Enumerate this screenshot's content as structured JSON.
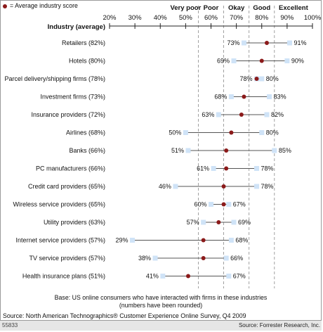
{
  "legend": {
    "label": "= Average industry score"
  },
  "chart_data": {
    "type": "dot-range",
    "header_label": "Industry (average)",
    "x_ticks": [
      "20%",
      "30%",
      "40%",
      "50%",
      "60%",
      "70%",
      "80%",
      "90%",
      "100%"
    ],
    "xlim": [
      20,
      100
    ],
    "ratings": [
      {
        "label": "Very poor",
        "from": 45,
        "to": 55
      },
      {
        "label": "Poor",
        "from": 55,
        "to": 65
      },
      {
        "label": "Okay",
        "from": 65,
        "to": 75
      },
      {
        "label": "Good",
        "from": 75,
        "to": 85
      },
      {
        "label": "Excellent",
        "from": 85,
        "to": 100
      }
    ],
    "rows": [
      {
        "label": "Retailers (82%)",
        "avg": 82,
        "min": 73,
        "max": 91,
        "min_label": "73%",
        "max_label": "91%"
      },
      {
        "label": "Hotels (80%)",
        "avg": 80,
        "min": 69,
        "max": 90,
        "min_label": "69%",
        "max_label": "90%"
      },
      {
        "label": "Parcel delivery/shipping firms (78%)",
        "avg": 78,
        "min": 78,
        "max": 80,
        "min_label": "78%",
        "max_label": "80%"
      },
      {
        "label": "Investment firms (73%)",
        "avg": 73,
        "min": 68,
        "max": 83,
        "min_label": "68%",
        "max_label": "83%"
      },
      {
        "label": "Insurance providers (72%)",
        "avg": 72,
        "min": 63,
        "max": 82,
        "min_label": "63%",
        "max_label": "82%"
      },
      {
        "label": "Airlines (68%)",
        "avg": 68,
        "min": 50,
        "max": 80,
        "min_label": "50%",
        "max_label": "80%"
      },
      {
        "label": "Banks (66%)",
        "avg": 66,
        "min": 51,
        "max": 85,
        "min_label": "51%",
        "max_label": "85%"
      },
      {
        "label": "PC manufacturers (66%)",
        "avg": 66,
        "min": 61,
        "max": 78,
        "min_label": "61%",
        "max_label": "78%"
      },
      {
        "label": "Credit card providers (65%)",
        "avg": 65,
        "min": 46,
        "max": 78,
        "min_label": "46%",
        "max_label": "78%"
      },
      {
        "label": "Wireless service providers (65%)",
        "avg": 65,
        "min": 60,
        "max": 67,
        "min_label": "60%",
        "max_label": "67%"
      },
      {
        "label": "Utility providers (63%)",
        "avg": 63,
        "min": 57,
        "max": 69,
        "min_label": "57%",
        "max_label": "69%"
      },
      {
        "label": "Internet service providers (57%)",
        "avg": 57,
        "min": 29,
        "max": 68,
        "min_label": "29%",
        "max_label": "68%"
      },
      {
        "label": "TV service providers (57%)",
        "avg": 57,
        "min": 38,
        "max": 66,
        "min_label": "38%",
        "max_label": "66%"
      },
      {
        "label": "Health insurance plans (51%)",
        "avg": 51,
        "min": 41,
        "max": 67,
        "min_label": "41%",
        "max_label": "67%"
      }
    ],
    "colors": {
      "average_dot": "#8b1a1a",
      "range_end": "#cfe3f7",
      "line": "#555555",
      "footer_bar": "#e6e6e6"
    }
  },
  "notes": {
    "base": "Base: US online consumers who have interacted with firms in these industries",
    "rounded": "(numbers have been rounded)",
    "source": "Source: North American Technographics® Customer Experience Online Survey, Q4 2009"
  },
  "footer": {
    "id": "55833",
    "source": "Source: Forrester Research, Inc."
  }
}
